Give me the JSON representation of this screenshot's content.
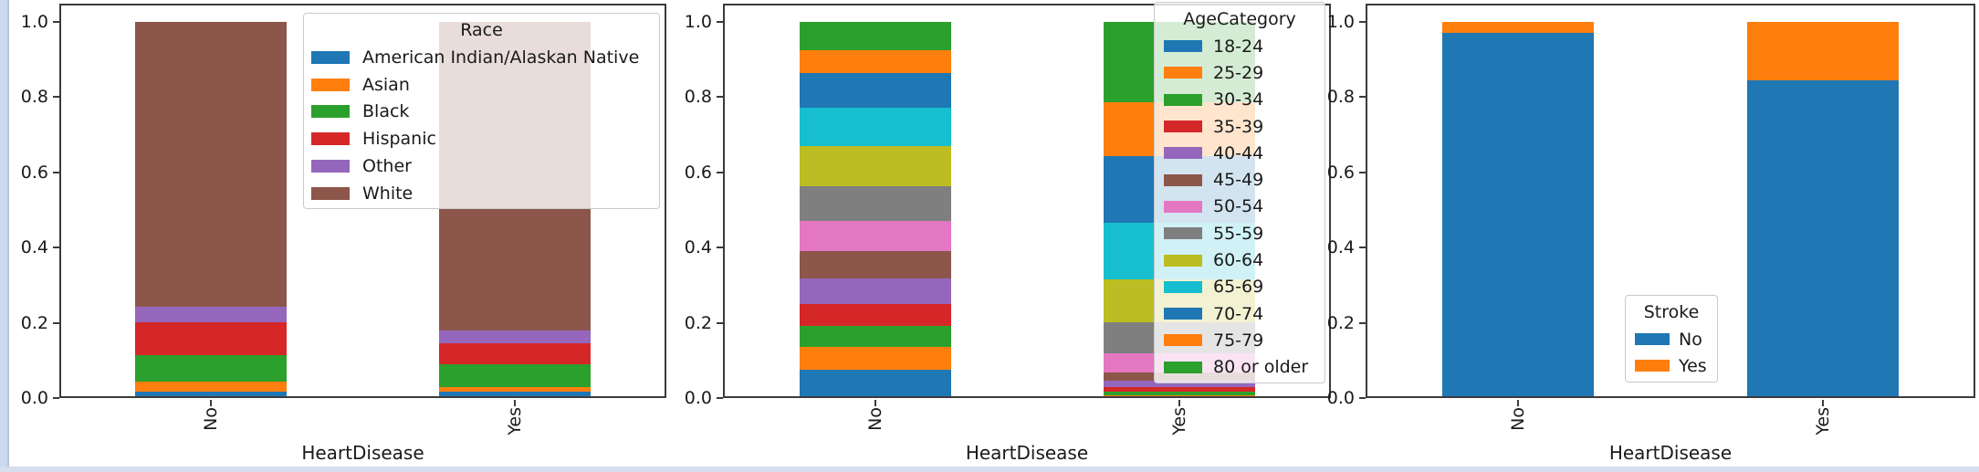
{
  "page": {
    "background_color": "#ffffff",
    "notebook_cell_border_color": "#ccd9ed",
    "notebook_cell_border_line_color": "#b3c4e0",
    "axis_color": "#3b3b3b",
    "text_color": "#1a1a1a"
  },
  "chart_data": [
    {
      "type": "bar",
      "stacked": true,
      "normalized": true,
      "title": "",
      "xlabel": "HeartDisease",
      "ylabel": "",
      "categories": [
        "No",
        "Yes"
      ],
      "ytick_labels": [
        "1.0",
        "0.8",
        "0.6",
        "0.4",
        "0.2",
        "0.0"
      ],
      "ylim": [
        0,
        1.05
      ],
      "grid": false,
      "legend_title": "Race",
      "legend_position": "upper right",
      "series": [
        {
          "name": "American Indian/Alaskan Native",
          "color": "#1f77b4",
          "values": [
            0.018,
            0.018
          ]
        },
        {
          "name": "Asian",
          "color": "#ff7f0e",
          "values": [
            0.026,
            0.011
          ]
        },
        {
          "name": "Black",
          "color": "#2ca02c",
          "values": [
            0.07,
            0.061
          ]
        },
        {
          "name": "Hispanic",
          "color": "#d62728",
          "values": [
            0.087,
            0.055
          ]
        },
        {
          "name": "Other",
          "color": "#9467bd",
          "values": [
            0.041,
            0.034
          ]
        },
        {
          "name": "White",
          "color": "#8c564b",
          "values": [
            0.758,
            0.821
          ]
        }
      ]
    },
    {
      "type": "bar",
      "stacked": true,
      "normalized": true,
      "title": "",
      "xlabel": "HeartDisease",
      "ylabel": "",
      "categories": [
        "No",
        "Yes"
      ],
      "ytick_labels": [
        "1.0",
        "0.8",
        "0.6",
        "0.4",
        "0.2",
        "0.0"
      ],
      "ylim": [
        0,
        1.05
      ],
      "grid": false,
      "legend_title": "AgeCategory",
      "legend_position": "upper right",
      "series": [
        {
          "name": "18-24",
          "color": "#1f77b4",
          "values": [
            0.075,
            0.004
          ]
        },
        {
          "name": "25-29",
          "color": "#ff7f0e",
          "values": [
            0.062,
            0.004
          ]
        },
        {
          "name": "30-34",
          "color": "#2ca02c",
          "values": [
            0.055,
            0.008
          ]
        },
        {
          "name": "35-39",
          "color": "#d62728",
          "values": [
            0.058,
            0.012
          ]
        },
        {
          "name": "40-44",
          "color": "#9467bd",
          "values": [
            0.068,
            0.017
          ]
        },
        {
          "name": "45-49",
          "color": "#8c564b",
          "values": [
            0.072,
            0.024
          ]
        },
        {
          "name": "50-54",
          "color": "#e377c2",
          "values": [
            0.08,
            0.05
          ]
        },
        {
          "name": "55-59",
          "color": "#7f7f7f",
          "values": [
            0.092,
            0.082
          ]
        },
        {
          "name": "60-64",
          "color": "#bcbd22",
          "values": [
            0.107,
            0.115
          ]
        },
        {
          "name": "65-69",
          "color": "#17becf",
          "values": [
            0.103,
            0.15
          ]
        },
        {
          "name": "70-74",
          "color": "#1f77b4",
          "values": [
            0.092,
            0.178
          ]
        },
        {
          "name": "75-79",
          "color": "#ff7f0e",
          "values": [
            0.06,
            0.143
          ]
        },
        {
          "name": "80 or older",
          "color": "#2ca02c",
          "values": [
            0.076,
            0.213
          ]
        }
      ]
    },
    {
      "type": "bar",
      "stacked": true,
      "normalized": true,
      "title": "",
      "xlabel": "HeartDisease",
      "ylabel": "",
      "categories": [
        "No",
        "Yes"
      ],
      "ytick_labels": [
        "1.0",
        "0.8",
        "0.6",
        "0.4",
        "0.2",
        "0.0"
      ],
      "ylim": [
        0,
        1.05
      ],
      "grid": false,
      "legend_title": "Stroke",
      "legend_position": "lower center",
      "series": [
        {
          "name": "No",
          "color": "#1f77b4",
          "values": [
            0.972,
            0.845
          ]
        },
        {
          "name": "Yes",
          "color": "#ff7f0e",
          "values": [
            0.028,
            0.155
          ]
        }
      ]
    }
  ]
}
